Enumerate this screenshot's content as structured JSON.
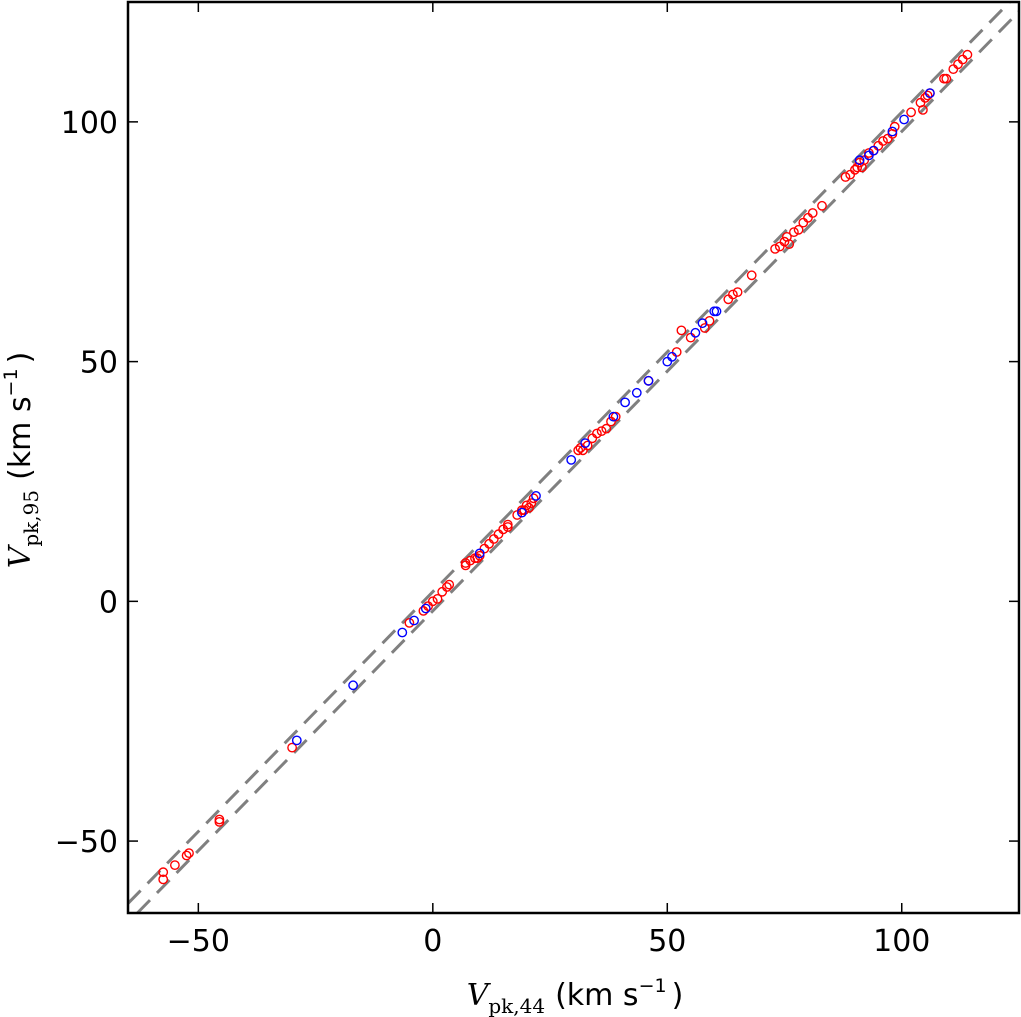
{
  "chart_data": {
    "type": "scatter",
    "xlabel": {
      "symbol": "V",
      "subscript": "pk,44",
      "units": "(km s",
      "exponent": "−1",
      "close": ")"
    },
    "ylabel": {
      "symbol": "V",
      "subscript": "pk,95",
      "units": "(km s",
      "exponent": "−1",
      "close": ")"
    },
    "xlim": [
      -65,
      125
    ],
    "ylim": [
      -65,
      125
    ],
    "xticks": [
      -50,
      0,
      50,
      100
    ],
    "yticks": [
      -50,
      0,
      50,
      100
    ],
    "xtick_labels": [
      "−50",
      "0",
      "50",
      "100"
    ],
    "ytick_labels": [
      "−50",
      "0",
      "50",
      "100"
    ],
    "grid": false,
    "reference_lines": [
      {
        "slope": 1,
        "intercept": 2,
        "style": "dashed",
        "color": "#808080"
      },
      {
        "slope": 1,
        "intercept": -2,
        "style": "dashed",
        "color": "#808080"
      }
    ],
    "series": [
      {
        "color": "#ff0000",
        "marker": "open-circle",
        "points": [
          [
            -57.5,
            -56.5
          ],
          [
            -57.5,
            -58
          ],
          [
            -55,
            -55
          ],
          [
            -52.5,
            -53
          ],
          [
            -52,
            -52.5
          ],
          [
            -45.5,
            -45.5
          ],
          [
            -45.5,
            -46
          ],
          [
            -30,
            -30.5
          ],
          [
            -5,
            -4.5
          ],
          [
            -2,
            -2
          ],
          [
            -1,
            -1
          ],
          [
            0,
            0
          ],
          [
            1,
            0.5
          ],
          [
            2,
            2
          ],
          [
            3,
            3
          ],
          [
            3.5,
            3.5
          ],
          [
            7,
            7.5
          ],
          [
            7,
            8
          ],
          [
            8,
            8.5
          ],
          [
            9,
            9
          ],
          [
            9.5,
            9
          ],
          [
            10,
            9.5
          ],
          [
            11,
            11
          ],
          [
            12,
            12
          ],
          [
            13,
            13
          ],
          [
            14,
            14
          ],
          [
            15,
            15
          ],
          [
            16,
            15.5
          ],
          [
            16,
            16
          ],
          [
            18,
            18
          ],
          [
            19,
            19
          ],
          [
            19.5,
            19
          ],
          [
            20,
            20
          ],
          [
            20.5,
            19.5
          ],
          [
            21,
            20.5
          ],
          [
            21.5,
            21.5
          ],
          [
            31,
            31.5
          ],
          [
            31.5,
            32
          ],
          [
            32,
            31.5
          ],
          [
            33,
            32.5
          ],
          [
            34,
            34
          ],
          [
            35,
            35
          ],
          [
            36,
            35.5
          ],
          [
            37,
            36
          ],
          [
            38,
            37.5
          ],
          [
            39,
            38.5
          ],
          [
            46,
            46
          ],
          [
            52,
            52
          ],
          [
            53,
            56.5
          ],
          [
            55,
            55
          ],
          [
            58,
            57
          ],
          [
            59,
            58.5
          ],
          [
            63,
            63
          ],
          [
            64,
            64
          ],
          [
            65,
            64.5
          ],
          [
            68,
            68
          ],
          [
            73,
            73.5
          ],
          [
            74,
            74
          ],
          [
            75,
            75
          ],
          [
            75.5,
            76
          ],
          [
            76,
            74.5
          ],
          [
            77,
            77
          ],
          [
            78,
            77.5
          ],
          [
            79,
            79
          ],
          [
            80,
            80
          ],
          [
            81,
            81
          ],
          [
            83,
            82.5
          ],
          [
            88,
            88.5
          ],
          [
            89,
            89
          ],
          [
            90,
            90
          ],
          [
            90.5,
            90.5
          ],
          [
            91,
            91.5
          ],
          [
            91.5,
            90.5
          ],
          [
            92,
            92
          ],
          [
            93,
            93.5
          ],
          [
            94,
            94
          ],
          [
            95,
            95
          ],
          [
            96,
            96
          ],
          [
            97,
            96.5
          ],
          [
            98,
            97.5
          ],
          [
            98.5,
            99
          ],
          [
            102,
            102
          ],
          [
            104,
            104
          ],
          [
            104.5,
            102.5
          ],
          [
            105,
            105
          ],
          [
            105.5,
            105.5
          ],
          [
            106,
            106
          ],
          [
            109,
            109
          ],
          [
            109.5,
            109
          ],
          [
            111,
            111
          ],
          [
            112,
            112
          ],
          [
            113,
            113
          ],
          [
            114,
            114
          ]
        ]
      },
      {
        "color": "#0000ff",
        "marker": "open-circle",
        "points": [
          [
            -29,
            -29
          ],
          [
            -17,
            -17.5
          ],
          [
            -6.5,
            -6.5
          ],
          [
            -4,
            -4
          ],
          [
            -1.5,
            -1.5
          ],
          [
            10,
            10
          ],
          [
            19,
            18.5
          ],
          [
            22,
            22
          ],
          [
            29.5,
            29.5
          ],
          [
            32.5,
            33
          ],
          [
            38.5,
            38.5
          ],
          [
            41,
            41.5
          ],
          [
            43.5,
            43.5
          ],
          [
            46,
            46
          ],
          [
            50,
            50
          ],
          [
            51,
            51
          ],
          [
            56,
            56
          ],
          [
            57.5,
            58
          ],
          [
            60,
            60.5
          ],
          [
            60.5,
            60.5
          ],
          [
            91,
            92
          ],
          [
            93,
            93
          ],
          [
            94,
            94
          ],
          [
            98,
            98
          ],
          [
            100.5,
            100.5
          ],
          [
            106,
            106
          ]
        ]
      }
    ]
  }
}
